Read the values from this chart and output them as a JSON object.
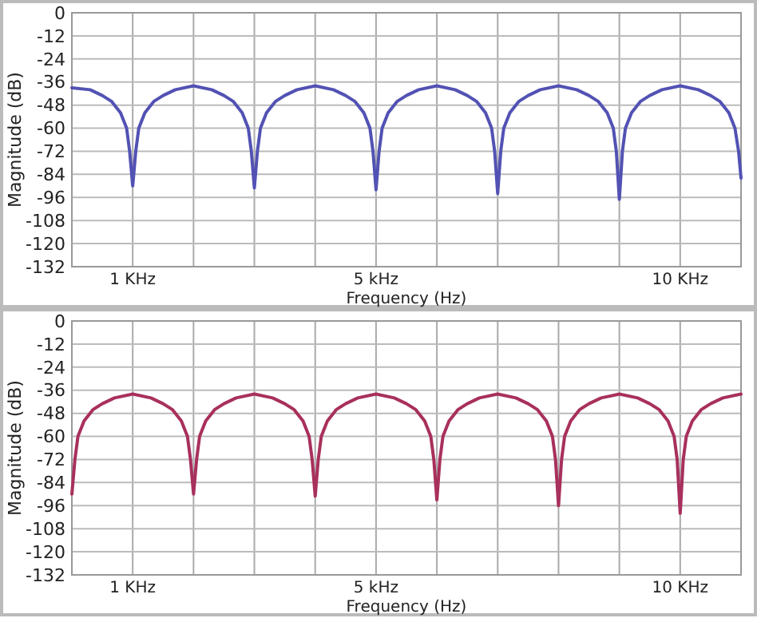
{
  "chart_data": [
    {
      "type": "line",
      "xlabel": "Frequency (Hz)",
      "ylabel": "Magnitude (dB)",
      "xlim": [
        0,
        11
      ],
      "ylim": [
        -132,
        0
      ],
      "yticks": [
        0,
        -12,
        -24,
        -36,
        -48,
        -60,
        -72,
        -84,
        -96,
        -108,
        -120,
        -132
      ],
      "xticks": [
        {
          "value": 1,
          "label": "1 KHz"
        },
        {
          "value": 2,
          "label": null
        },
        {
          "value": 3,
          "label": null
        },
        {
          "value": 4,
          "label": null
        },
        {
          "value": 5,
          "label": "5 kHz"
        },
        {
          "value": 6,
          "label": null
        },
        {
          "value": 7,
          "label": null
        },
        {
          "value": 8,
          "label": null
        },
        {
          "value": 9,
          "label": null
        },
        {
          "value": 10,
          "label": "10 KHz"
        }
      ],
      "grid": true,
      "series": [
        {
          "color": "#5252b4",
          "x": [
            0,
            0.3,
            0.5,
            0.65,
            0.8,
            0.9,
            0.95,
            1,
            1.05,
            1.1,
            1.2,
            1.35,
            1.5,
            1.7,
            2,
            2.3,
            2.5,
            2.65,
            2.8,
            2.9,
            2.95,
            3,
            3.05,
            3.1,
            3.2,
            3.35,
            3.5,
            3.7,
            4,
            4.3,
            4.5,
            4.65,
            4.8,
            4.9,
            4.95,
            5,
            5.05,
            5.1,
            5.2,
            5.35,
            5.5,
            5.7,
            6,
            6.3,
            6.5,
            6.65,
            6.8,
            6.9,
            6.95,
            7,
            7.05,
            7.1,
            7.2,
            7.35,
            7.5,
            7.7,
            8,
            8.3,
            8.5,
            8.65,
            8.8,
            8.9,
            8.95,
            9,
            9.05,
            9.1,
            9.2,
            9.35,
            9.5,
            9.7,
            10,
            10.3,
            10.5,
            10.65,
            10.8,
            10.9,
            10.96,
            11
          ],
          "values": [
            -39,
            -40,
            -43,
            -46,
            -52,
            -60,
            -72,
            -90,
            -72,
            -60,
            -52,
            -46,
            -43,
            -40,
            -38,
            -40,
            -43,
            -46,
            -52,
            -60,
            -72,
            -91,
            -72,
            -60,
            -52,
            -46,
            -43,
            -40,
            -38,
            -40,
            -43,
            -46,
            -52,
            -60,
            -72,
            -92,
            -72,
            -60,
            -52,
            -46,
            -43,
            -40,
            -38,
            -40,
            -43,
            -46,
            -52,
            -60,
            -72,
            -94,
            -72,
            -60,
            -52,
            -46,
            -43,
            -40,
            -38,
            -40,
            -43,
            -46,
            -52,
            -60,
            -72,
            -97,
            -72,
            -60,
            -52,
            -46,
            -43,
            -40,
            -38,
            -40,
            -43,
            -46,
            -52,
            -60,
            -72,
            -86
          ]
        }
      ]
    },
    {
      "type": "line",
      "xlabel": "Frequency (Hz)",
      "ylabel": "Magnitude (dB)",
      "xlim": [
        0,
        11
      ],
      "ylim": [
        -132,
        0
      ],
      "yticks": [
        0,
        -12,
        -24,
        -36,
        -48,
        -60,
        -72,
        -84,
        -96,
        -108,
        -120,
        -132
      ],
      "xticks": [
        {
          "value": 1,
          "label": "1 KHz"
        },
        {
          "value": 2,
          "label": null
        },
        {
          "value": 3,
          "label": null
        },
        {
          "value": 4,
          "label": null
        },
        {
          "value": 5,
          "label": "5 kHz"
        },
        {
          "value": 6,
          "label": null
        },
        {
          "value": 7,
          "label": null
        },
        {
          "value": 8,
          "label": null
        },
        {
          "value": 9,
          "label": null
        },
        {
          "value": 10,
          "label": "10 KHz"
        }
      ],
      "grid": true,
      "series": [
        {
          "color": "#a8305c",
          "x": [
            0,
            0.05,
            0.1,
            0.2,
            0.35,
            0.5,
            0.7,
            1,
            1.3,
            1.5,
            1.65,
            1.8,
            1.9,
            1.95,
            2,
            2.05,
            2.1,
            2.2,
            2.35,
            2.5,
            2.7,
            3,
            3.3,
            3.5,
            3.65,
            3.8,
            3.9,
            3.95,
            4,
            4.05,
            4.1,
            4.2,
            4.35,
            4.5,
            4.7,
            5,
            5.3,
            5.5,
            5.65,
            5.8,
            5.9,
            5.95,
            6,
            6.05,
            6.1,
            6.2,
            6.35,
            6.5,
            6.7,
            7,
            7.3,
            7.5,
            7.65,
            7.8,
            7.9,
            7.95,
            8,
            8.05,
            8.1,
            8.2,
            8.35,
            8.5,
            8.7,
            9,
            9.3,
            9.5,
            9.65,
            9.8,
            9.9,
            9.95,
            10,
            10.05,
            10.1,
            10.2,
            10.35,
            10.5,
            10.7,
            11
          ],
          "values": [
            -90,
            -72,
            -60,
            -52,
            -46,
            -43,
            -40,
            -38,
            -40,
            -43,
            -46,
            -52,
            -60,
            -72,
            -90,
            -72,
            -60,
            -52,
            -46,
            -43,
            -40,
            -38,
            -40,
            -43,
            -46,
            -52,
            -60,
            -72,
            -91,
            -72,
            -60,
            -52,
            -46,
            -43,
            -40,
            -38,
            -40,
            -43,
            -46,
            -52,
            -60,
            -72,
            -93,
            -72,
            -60,
            -52,
            -46,
            -43,
            -40,
            -38,
            -40,
            -43,
            -46,
            -52,
            -60,
            -72,
            -96,
            -72,
            -60,
            -52,
            -46,
            -43,
            -40,
            -38,
            -40,
            -43,
            -46,
            -52,
            -60,
            -72,
            -100,
            -72,
            -60,
            -52,
            -46,
            -43,
            -40,
            -38
          ]
        }
      ]
    }
  ]
}
